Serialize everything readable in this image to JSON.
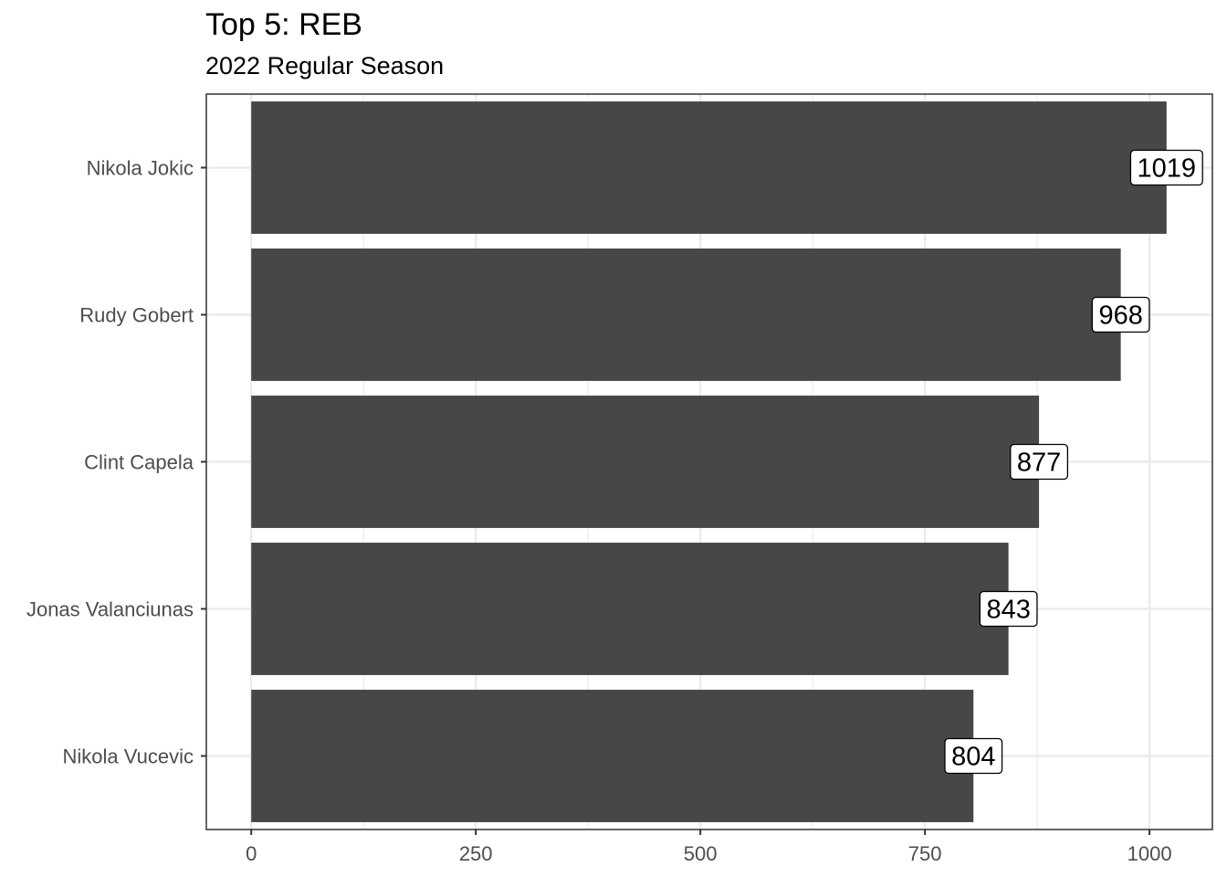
{
  "chart_data": {
    "type": "bar",
    "orientation": "horizontal",
    "title": "Top 5: REB",
    "subtitle": "2022 Regular Season",
    "xlabel": "",
    "ylabel": "",
    "categories": [
      "Nikola Jokic",
      "Rudy Gobert",
      "Clint Capela",
      "Jonas Valanciunas",
      "Nikola Vucevic"
    ],
    "values": [
      1019,
      968,
      877,
      843,
      804
    ],
    "data_labels": [
      "1019",
      "968",
      "877",
      "843",
      "804"
    ],
    "xlim": [
      -50,
      1070
    ],
    "xticks": [
      0,
      250,
      500,
      750,
      1000
    ],
    "xtick_labels": [
      "0",
      "250",
      "500",
      "750",
      "1000"
    ],
    "grid": true,
    "legend": "none",
    "bar_color": "#474747",
    "panel_border_color": "#333333",
    "grid_color": "#ebebeb",
    "axis_text_color": "#4d4d4d"
  }
}
